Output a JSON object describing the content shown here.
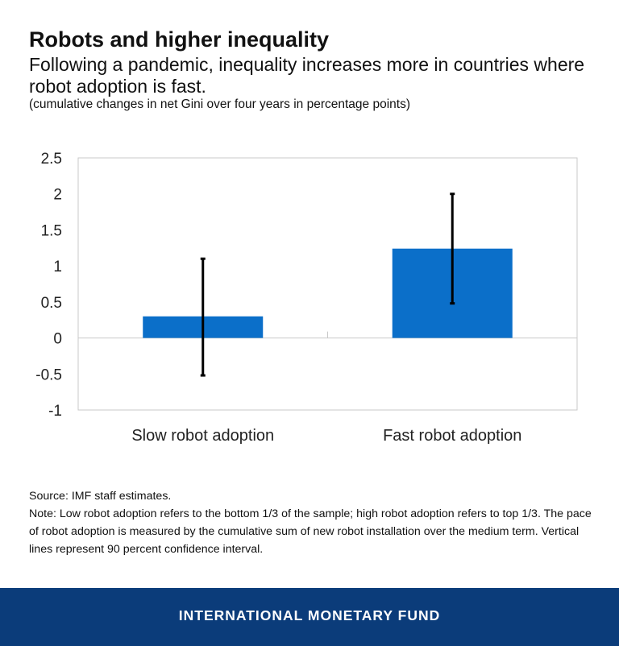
{
  "header": {
    "title": "Robots and higher inequality",
    "subtitle": "Following a pandemic, inequality increases more in countries where robot adoption is fast.",
    "units": "(cumulative changes in net Gini over four years in percentage points)"
  },
  "chart_data": {
    "type": "bar",
    "title": "Robots and higher inequality",
    "xlabel": "",
    "ylabel": "",
    "categories": [
      "Slow robot adoption",
      "Fast robot adoption"
    ],
    "values": [
      0.3,
      1.24
    ],
    "error_bars": [
      {
        "low": -0.52,
        "high": 1.1
      },
      {
        "low": 0.48,
        "high": 2.0
      }
    ],
    "ylim": [
      -1,
      2.5
    ],
    "yticks": [
      2.5,
      2,
      1.5,
      1,
      0.5,
      0,
      -0.5,
      -1
    ],
    "ytick_labels": [
      "2.5",
      "2",
      "1.5",
      "1",
      "0.5",
      "0",
      "-0.5",
      "-1"
    ],
    "grid": false,
    "colors": {
      "bar": "#0b6fc9",
      "error_bar": "#000000",
      "frame": "#c9c9c9",
      "zero_line": "#c9c9c9"
    }
  },
  "footnotes": {
    "source": "Source: IMF staff estimates.",
    "note": "Note: Low robot adoption refers to the bottom 1/3 of the sample; high robot adoption refers to top 1/3. The pace of robot adoption is measured by the cumulative sum of new robot installation over the medium term. Vertical lines represent 90 percent confidence interval."
  },
  "footer": {
    "label": "INTERNATIONAL MONETARY FUND",
    "color": "#0b3c7a"
  }
}
